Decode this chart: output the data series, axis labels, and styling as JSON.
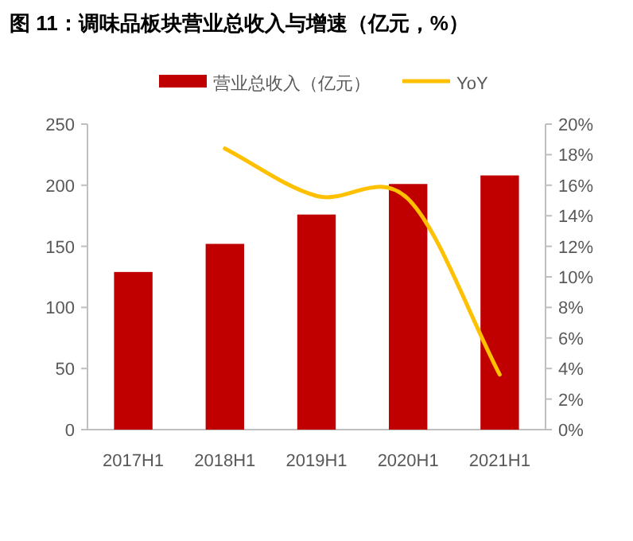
{
  "chart_data": {
    "type": "bar",
    "title": "图 11：调味品板块营业总收入与增速（亿元，%）",
    "categories": [
      "2017H1",
      "2018H1",
      "2019H1",
      "2020H1",
      "2021H1"
    ],
    "series": [
      {
        "name": "营业总收入（亿元）",
        "color": "#c00000",
        "values": [
          129,
          152,
          176,
          201,
          208
        ]
      },
      {
        "name": "YoY",
        "type": "line",
        "color": "#ffc000",
        "axis": "y2",
        "values": [
          null,
          18.4,
          15.3,
          15.1,
          3.6
        ]
      }
    ],
    "ylim": [
      0,
      250
    ],
    "yticks": [
      0,
      50,
      100,
      150,
      200,
      250
    ],
    "y2lim": [
      0,
      20
    ],
    "y2ticks": [
      {
        "value": 0,
        "label": "0%"
      },
      {
        "value": 2,
        "label": "2%"
      },
      {
        "value": 4,
        "label": "4%"
      },
      {
        "value": 6,
        "label": "6%"
      },
      {
        "value": 8,
        "label": "8%"
      },
      {
        "value": 10,
        "label": "10%"
      },
      {
        "value": 12,
        "label": "12%"
      },
      {
        "value": 14,
        "label": "14%"
      },
      {
        "value": 16,
        "label": "16%"
      },
      {
        "value": 18,
        "label": "18%"
      },
      {
        "value": 20,
        "label": "20%"
      }
    ],
    "legend": "top",
    "grid": false,
    "marker": "none",
    "line_style": "solid"
  }
}
